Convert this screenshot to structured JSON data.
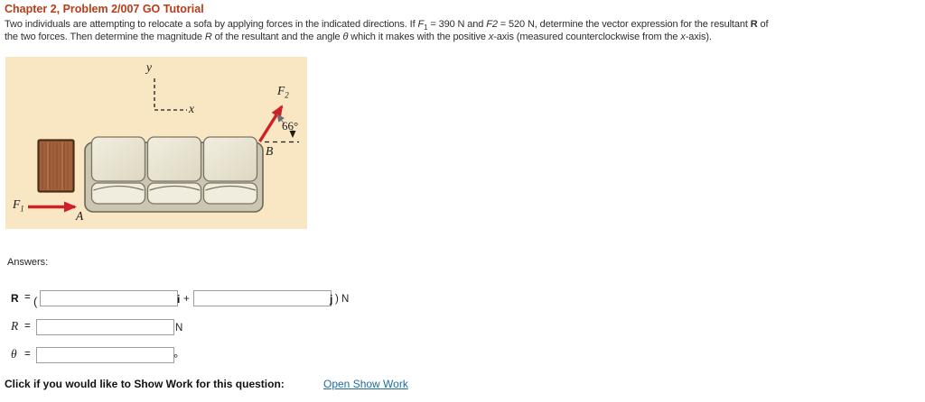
{
  "title": "Chapter 2, Problem 2/007 GO Tutorial",
  "problem": {
    "line1": [
      {
        "t": "Two individuals are attempting to relocate a sofa by applying forces in the indicated directions. If ",
        "s": "r"
      },
      {
        "t": "F",
        "s": "i"
      },
      {
        "t": "1",
        "s": "sub"
      },
      {
        "t": " = 390 N and ",
        "s": "r"
      },
      {
        "t": "F2",
        "s": "i"
      },
      {
        "t": " = 520 N, determine the vector expression for the resultant ",
        "s": "r"
      },
      {
        "t": "R",
        "s": "b"
      },
      {
        "t": " of",
        "s": "r"
      }
    ],
    "line2": [
      {
        "t": "the two forces. Then determine the magnitude ",
        "s": "r"
      },
      {
        "t": "R",
        "s": "i"
      },
      {
        "t": " of the resultant and the angle ",
        "s": "r"
      },
      {
        "t": "θ",
        "s": "i"
      },
      {
        "t": " which it makes with the positive ",
        "s": "r"
      },
      {
        "t": "x",
        "s": "i"
      },
      {
        "t": "-axis (measured counterclockwise from the ",
        "s": "r"
      },
      {
        "t": "x",
        "s": "i"
      },
      {
        "t": "-axis).",
        "s": "r"
      }
    ]
  },
  "figure": {
    "labels": {
      "y_axis": "y",
      "x_axis": "x",
      "f2_main": "F",
      "f2_sub": "2",
      "angle": "66°",
      "point_b": "B",
      "f1_main": "F",
      "f1_sub": "1",
      "point_a": "A"
    },
    "colors": {
      "panel_bg": "#f9e7c4",
      "force_arrow_red": "#ce2127",
      "sofa_frame": "#cbc5b1",
      "cushion": "#eae5d4",
      "table_wood": "#a3613b"
    }
  },
  "answers": {
    "heading": "Answers:",
    "r_vector": {
      "label": "R",
      "eq": "=",
      "open_paren": "(",
      "i_unit": "i",
      "plus": "+",
      "j_unit": "j",
      "close_paren_unit": ") N",
      "input_i_value": "",
      "input_j_value": ""
    },
    "r_magnitude": {
      "label": "R",
      "eq": "=",
      "unit": "N",
      "input_value": ""
    },
    "theta": {
      "label": "θ",
      "eq": "=",
      "unit": "°",
      "input_value": ""
    }
  },
  "footer": {
    "prompt": "Click if you would like to Show Work for this question:",
    "link_label": "Open Show Work"
  }
}
